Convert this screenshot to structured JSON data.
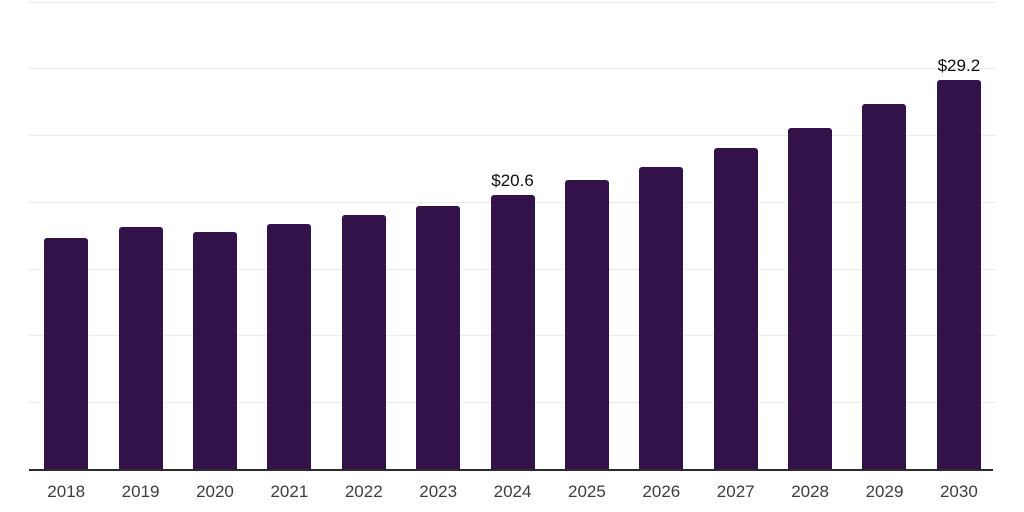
{
  "chart_data": {
    "type": "bar",
    "title": "",
    "xlabel": "",
    "ylabel": "",
    "categories": [
      "2018",
      "2019",
      "2020",
      "2021",
      "2022",
      "2023",
      "2024",
      "2025",
      "2026",
      "2027",
      "2028",
      "2029",
      "2030"
    ],
    "values": [
      17.4,
      18.2,
      17.8,
      18.4,
      19.1,
      19.8,
      20.6,
      21.7,
      22.7,
      24.1,
      25.6,
      27.4,
      29.2
    ],
    "bar_labels": [
      "",
      "",
      "",
      "",
      "",
      "",
      "$20.6",
      "",
      "",
      "",
      "",
      "",
      "$29.2"
    ],
    "ylim": [
      0,
      35
    ],
    "gridline_step": 5,
    "grid": true,
    "legend": "none",
    "colors": {
      "bar": "#33124a",
      "gridline": "#ececec",
      "axis_line": "#2b2b2b",
      "tick_label": "#3d3d3d",
      "bar_label": "#0e0e0e",
      "background": "#ffffff"
    }
  }
}
